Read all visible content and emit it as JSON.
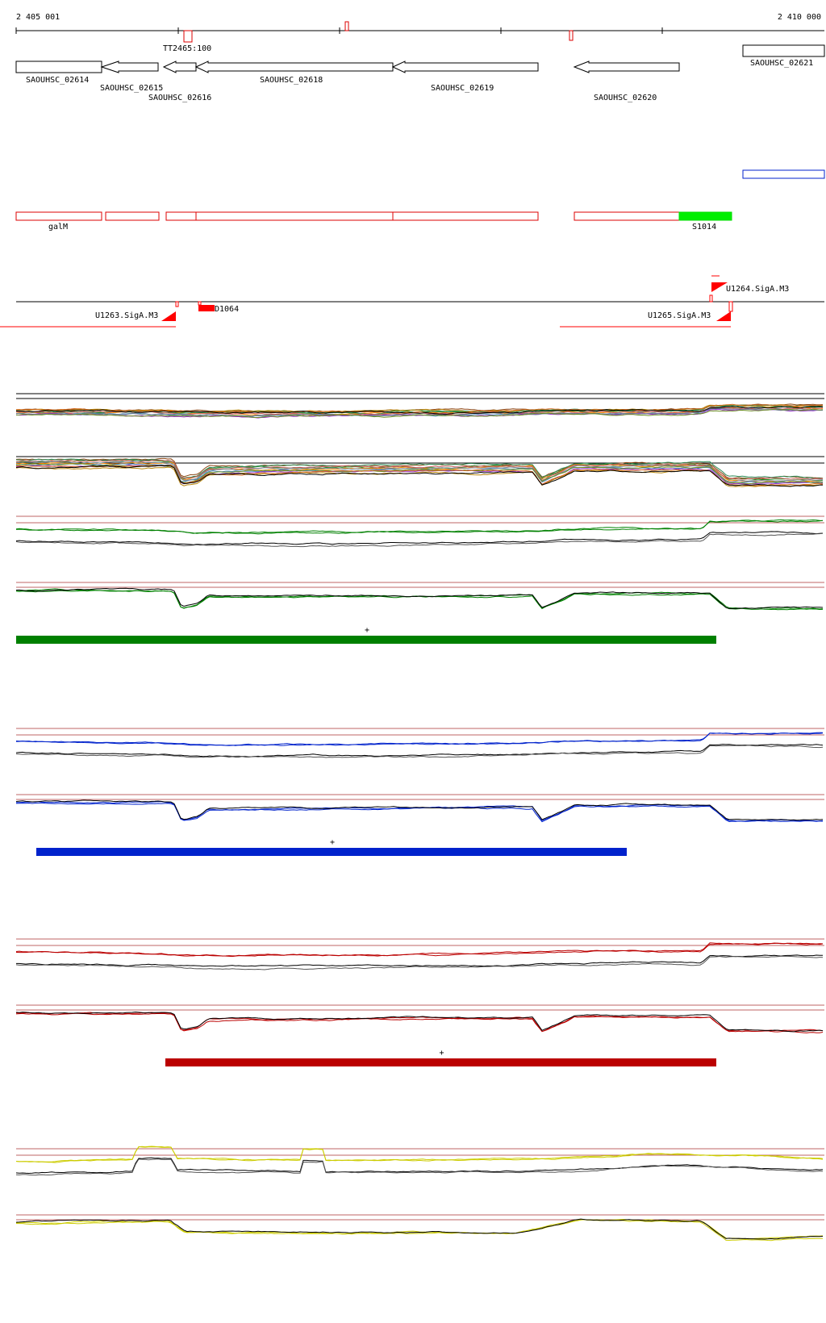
{
  "coords": {
    "start": "2 405 001",
    "end": "2 410 000"
  },
  "terminator_label": "TT2465:100",
  "genes": [
    {
      "name": "SAOUHSC_02614",
      "strand": "none"
    },
    {
      "name": "SAOUHSC_02615",
      "strand": "minus"
    },
    {
      "name": "SAOUHSC_02616",
      "strand": "minus"
    },
    {
      "name": "SAOUHSC_02618",
      "strand": "minus"
    },
    {
      "name": "SAOUHSC_02619",
      "strand": "minus"
    },
    {
      "name": "SAOUHSC_02620",
      "strand": "minus"
    },
    {
      "name": "SAOUHSC_02621",
      "strand": "none"
    }
  ],
  "annotations": [
    {
      "label": "galM",
      "color": "#dd0000"
    },
    {
      "label": "S1014",
      "color": "#00dd00"
    }
  ],
  "promoters": [
    {
      "label": "U1263.SigA.M3"
    },
    {
      "label": "D1064"
    },
    {
      "label": "U1264.SigA.M3"
    },
    {
      "label": "U1265.SigA.M3"
    }
  ],
  "conditions": [
    {
      "color": "#008000",
      "strand_mark": "+"
    },
    {
      "color": "#0022cc",
      "strand_mark": "+"
    },
    {
      "color": "#bb0000",
      "strand_mark": "+"
    },
    {
      "color": "#cccc00",
      "strand_mark": ""
    }
  ],
  "colors": {
    "axis": "#000000",
    "threshold": "#aa3333",
    "gene_outline": "#000000",
    "feature_outline": "#dd0000",
    "promoter": "#ff0000"
  }
}
